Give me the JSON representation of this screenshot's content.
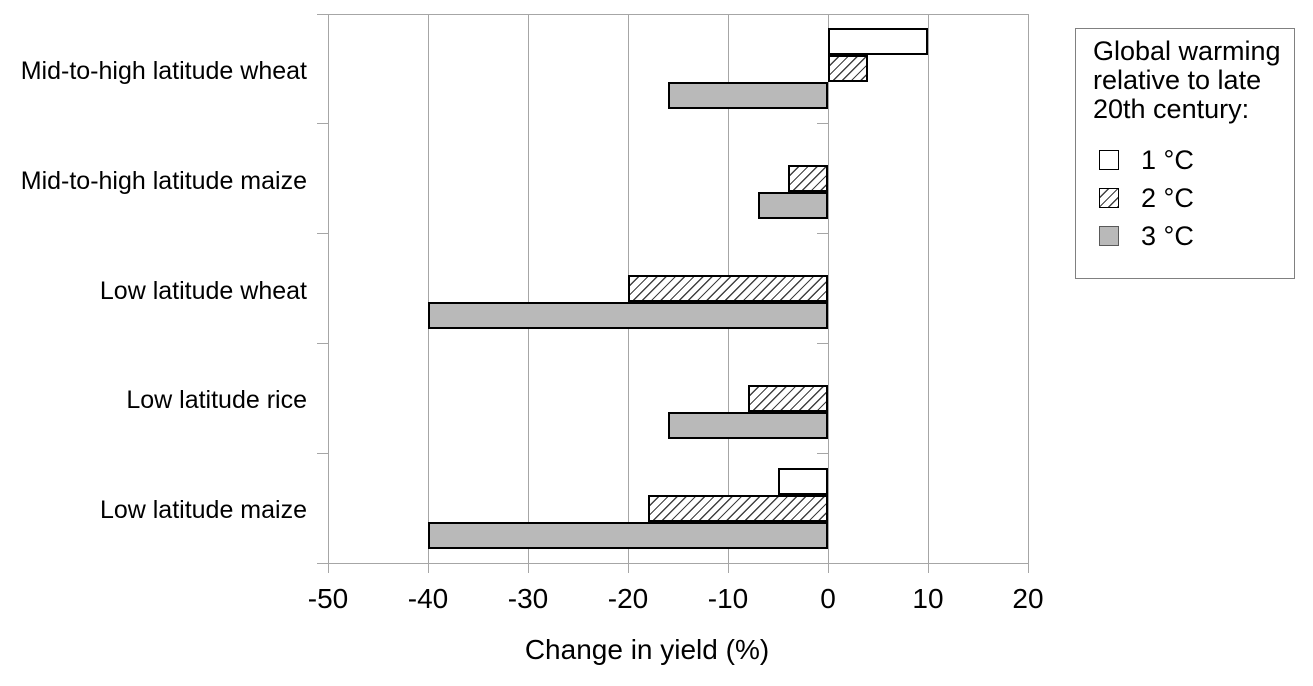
{
  "chart_data": {
    "type": "bar",
    "orientation": "horizontal",
    "title": "",
    "xlabel": "Change in yield (%)",
    "ylabel": "",
    "xlim": [
      -50,
      20
    ],
    "xticks": [
      -50,
      -40,
      -30,
      -20,
      -10,
      0,
      10,
      20
    ],
    "xtick_labels": [
      "-50",
      "-40",
      "-30",
      "-20",
      "-10",
      "0",
      "10",
      "20"
    ],
    "grid": "vertical",
    "legend_position": "right",
    "categories": [
      "Mid-to-high latitude wheat",
      "Mid-to-high latitude maize",
      "Low latitude wheat",
      "Low latitude rice",
      "Low latitude maize"
    ],
    "series": [
      {
        "name": "1 °C",
        "style": "white",
        "values": [
          10,
          0,
          0,
          0,
          -5
        ]
      },
      {
        "name": "2 °C",
        "style": "hatch",
        "values": [
          4,
          -4,
          -20,
          -8,
          -18
        ]
      },
      {
        "name": "3 °C",
        "style": "gray",
        "values": [
          -16,
          -7,
          -40,
          -16,
          -40
        ]
      }
    ]
  },
  "legend": {
    "title_lines": [
      "Global warming",
      "relative to late",
      "20th century:"
    ],
    "items": [
      {
        "label": "1 °C",
        "swatch": "white"
      },
      {
        "label": "2 °C",
        "swatch": "hatch"
      },
      {
        "label": "3 °C",
        "swatch": "gray"
      }
    ]
  },
  "colors": {
    "background": "#ffffff",
    "bar_white": "#ffffff",
    "bar_gray": "#b9b9b9",
    "bar_border": "#000000",
    "hatch_line": "#404040",
    "gridline": "#a6a6a6",
    "legend_border": "#808080",
    "text": "#000000"
  }
}
